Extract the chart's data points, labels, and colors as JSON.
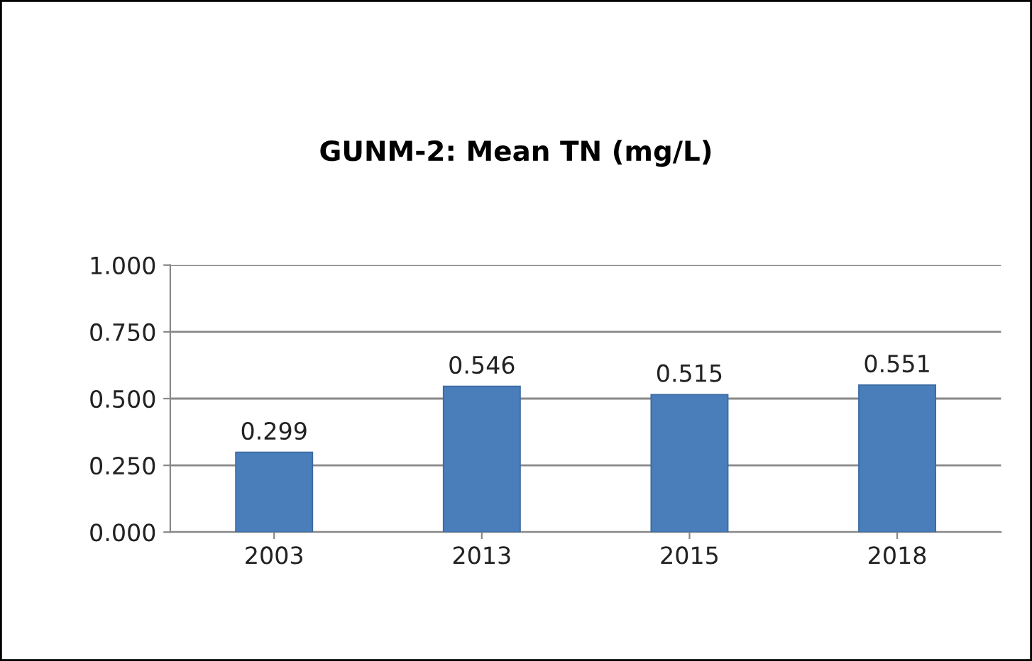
{
  "chart_data": {
    "type": "bar",
    "title": "GUNM-2: Mean TN (mg/L)",
    "categories": [
      "2003",
      "2013",
      "2015",
      "2018"
    ],
    "values": [
      0.299,
      0.546,
      0.515,
      0.551
    ],
    "color": "#4a7ebb",
    "value_labels": [
      "0.299",
      "0.546",
      "0.515",
      "0.551"
    ],
    "ylim": [
      0,
      1
    ],
    "yticks": [
      {
        "value": 0,
        "label": "0.000"
      },
      {
        "value": 0.25,
        "label": "0.250"
      },
      {
        "value": 0.5,
        "label": "0.500"
      },
      {
        "value": 0.75,
        "label": "0.750"
      },
      {
        "value": 1,
        "label": "1.000"
      }
    ],
    "grid": "y"
  }
}
